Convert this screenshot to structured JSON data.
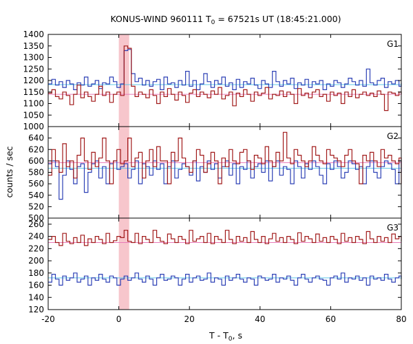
{
  "title_main": "KONUS-WIND 960111 T",
  "title_sub": "0",
  "title_rest": " = 67521s UT (18:45:21.000)",
  "xlabel_main": "T - T",
  "xlabel_sub": "0",
  "xlabel_rest": ", s",
  "ylabel": "counts / sec",
  "colors": {
    "blue_series": "#2b3fb5",
    "red_series": "#a01818",
    "blue_level": "#5fc8e8",
    "red_level": "#e87ab8",
    "highlight": "#f7c6cc",
    "cyan_peak": "#5fc8e8"
  },
  "chart_data": [
    {
      "type": "line",
      "panel": "G1",
      "label": "G1",
      "xlim": [
        -20,
        80
      ],
      "ylim": [
        1000,
        1400
      ],
      "yticks": [
        1000,
        1050,
        1100,
        1150,
        1200,
        1250,
        1300,
        1350,
        1400
      ],
      "highlight_interval": [
        0,
        2.944
      ],
      "bin_width": 1.024,
      "x_start": -20,
      "series": [
        {
          "color": "blue",
          "level": 1182,
          "values": [
            1185,
            1205,
            1180,
            1195,
            1170,
            1200,
            1185,
            1160,
            1190,
            1180,
            1215,
            1175,
            1185,
            1200,
            1165,
            1190,
            1185,
            1215,
            1195,
            1170,
            1185,
            1330,
            1335,
            1230,
            1195,
            1210,
            1180,
            1200,
            1175,
            1195,
            1205,
            1160,
            1215,
            1185,
            1190,
            1170,
            1200,
            1180,
            1240,
            1175,
            1200,
            1160,
            1185,
            1230,
            1195,
            1170,
            1200,
            1185,
            1215,
            1175,
            1190,
            1160,
            1205,
            1170,
            1195,
            1185,
            1210,
            1180,
            1165,
            1200,
            1185,
            1170,
            1240,
            1195,
            1175,
            1200,
            1185,
            1210,
            1165,
            1190,
            1180,
            1205,
            1170,
            1195,
            1185,
            1200,
            1160,
            1185,
            1175,
            1200,
            1190,
            1170,
            1185,
            1210,
            1195,
            1180,
            1200,
            1175,
            1250,
            1190,
            1180,
            1200,
            1210,
            1170,
            1195,
            1185,
            1200,
            1175,
            1190
          ]
        },
        {
          "color": "red",
          "level": 1140,
          "values": [
            1145,
            1160,
            1130,
            1120,
            1150,
            1135,
            1095,
            1140,
            1180,
            1125,
            1150,
            1130,
            1110,
            1140,
            1175,
            1135,
            1150,
            1105,
            1140,
            1150,
            1135,
            1350,
            1340,
            1175,
            1130,
            1150,
            1140,
            1125,
            1160,
            1135,
            1100,
            1150,
            1130,
            1165,
            1140,
            1115,
            1150,
            1135,
            1105,
            1145,
            1160,
            1130,
            1150,
            1140,
            1125,
            1155,
            1140,
            1170,
            1120,
            1135,
            1150,
            1090,
            1145,
            1130,
            1160,
            1140,
            1110,
            1150,
            1135,
            1145,
            1170,
            1120,
            1140,
            1135,
            1155,
            1130,
            1150,
            1140,
            1100,
            1165,
            1135,
            1145,
            1125,
            1150,
            1160,
            1130,
            1140,
            1110,
            1150,
            1135,
            1145,
            1100,
            1150,
            1130,
            1160,
            1125,
            1140,
            1150,
            1135,
            1145,
            1130,
            1155,
            1140,
            1070,
            1150,
            1145,
            1135,
            1150,
            1140
          ]
        }
      ]
    },
    {
      "type": "line",
      "panel": "G2",
      "label": "G2",
      "xlim": [
        -20,
        80
      ],
      "ylim": [
        500,
        660
      ],
      "yticks": [
        500,
        520,
        540,
        560,
        580,
        600,
        620,
        640
      ],
      "highlight_interval": [
        0,
        2.944
      ],
      "bin_width": 1.024,
      "x_start": -20,
      "series": [
        {
          "color": "blue",
          "level": 587,
          "values": [
            595,
            600,
            590,
            533,
            575,
            600,
            585,
            560,
            590,
            595,
            545,
            580,
            595,
            600,
            570,
            590,
            560,
            595,
            600,
            585,
            590,
            595,
            570,
            585,
            600,
            560,
            595,
            590,
            575,
            600,
            585,
            595,
            560,
            590,
            600,
            570,
            585,
            595,
            590,
            575,
            600,
            565,
            590,
            580,
            600,
            585,
            595,
            570,
            590,
            600,
            575,
            595,
            560,
            590,
            585,
            600,
            570,
            590,
            595,
            580,
            600,
            565,
            590,
            600,
            575,
            590,
            585,
            560,
            600,
            590,
            570,
            595,
            585,
            600,
            590,
            575,
            560,
            595,
            585,
            600,
            590,
            570,
            580,
            600,
            595,
            585,
            590,
            560,
            590,
            600,
            580,
            570,
            590,
            600,
            595,
            585,
            560,
            600,
            580
          ]
        },
        {
          "color": "red",
          "level": 597,
          "values": [
            575,
            620,
            600,
            580,
            630,
            590,
            600,
            570,
            610,
            640,
            600,
            585,
            615,
            590,
            605,
            640,
            600,
            560,
            600,
            620,
            595,
            600,
            640,
            590,
            605,
            615,
            570,
            600,
            620,
            590,
            625,
            600,
            600,
            560,
            615,
            600,
            640,
            605,
            590,
            580,
            600,
            620,
            610,
            580,
            595,
            615,
            600,
            560,
            605,
            590,
            620,
            600,
            595,
            615,
            620,
            600,
            585,
            610,
            605,
            595,
            625,
            600,
            590,
            615,
            600,
            650,
            605,
            595,
            620,
            610,
            600,
            590,
            600,
            625,
            610,
            600,
            595,
            620,
            610,
            605,
            600,
            590,
            610,
            620,
            600,
            595,
            560,
            610,
            600,
            615,
            600,
            590,
            620,
            605,
            610,
            600,
            595,
            605,
            560
          ]
        }
      ]
    },
    {
      "type": "line",
      "panel": "G3",
      "label": "G3",
      "xlim": [
        -20,
        80
      ],
      "ylim": [
        120,
        270
      ],
      "yticks": [
        120,
        140,
        160,
        180,
        200,
        220,
        240,
        260
      ],
      "highlight_interval": [
        0,
        2.944
      ],
      "bin_width": 1.024,
      "x_start": -20,
      "series": [
        {
          "color": "blue",
          "level": 172,
          "values": [
            165,
            178,
            170,
            160,
            175,
            168,
            172,
            180,
            165,
            170,
            175,
            160,
            172,
            168,
            178,
            170,
            165,
            175,
            172,
            160,
            170,
            175,
            168,
            172,
            180,
            170,
            165,
            175,
            170,
            160,
            172,
            178,
            168,
            170,
            175,
            172,
            160,
            170,
            178,
            165,
            172,
            175,
            168,
            170,
            180,
            165,
            172,
            170,
            160,
            175,
            168,
            172,
            178,
            170,
            165,
            172,
            170,
            160,
            175,
            172,
            168,
            170,
            178,
            165,
            172,
            170,
            175,
            168,
            160,
            172,
            178,
            170,
            165,
            172,
            175,
            170,
            168,
            160,
            172,
            175,
            170,
            180,
            165,
            172,
            170,
            175,
            168,
            172,
            160,
            175,
            170,
            172,
            168,
            178,
            170,
            165,
            172,
            175,
            170
          ]
        },
        {
          "color": "red",
          "level": 230,
          "values": [
            235,
            240,
            230,
            225,
            245,
            232,
            228,
            238,
            230,
            242,
            225,
            236,
            230,
            240,
            235,
            228,
            245,
            230,
            233,
            240,
            238,
            250,
            232,
            230,
            245,
            228,
            240,
            235,
            230,
            250,
            238,
            232,
            228,
            244,
            236,
            230,
            240,
            235,
            228,
            250,
            232,
            236,
            240,
            230,
            245,
            228,
            240,
            235,
            230,
            250,
            235,
            228,
            240,
            232,
            238,
            230,
            248,
            235,
            230,
            240,
            228,
            236,
            245,
            232,
            238,
            230,
            240,
            235,
            228,
            246,
            232,
            240,
            236,
            230,
            244,
            232,
            238,
            230,
            240,
            235,
            228,
            245,
            232,
            238,
            230,
            240,
            235,
            228,
            248,
            236,
            230,
            240,
            232,
            238,
            230,
            244,
            236,
            240,
            232
          ]
        }
      ]
    }
  ],
  "xaxis": {
    "ticks": [
      -20,
      0,
      20,
      40,
      60,
      80
    ]
  }
}
